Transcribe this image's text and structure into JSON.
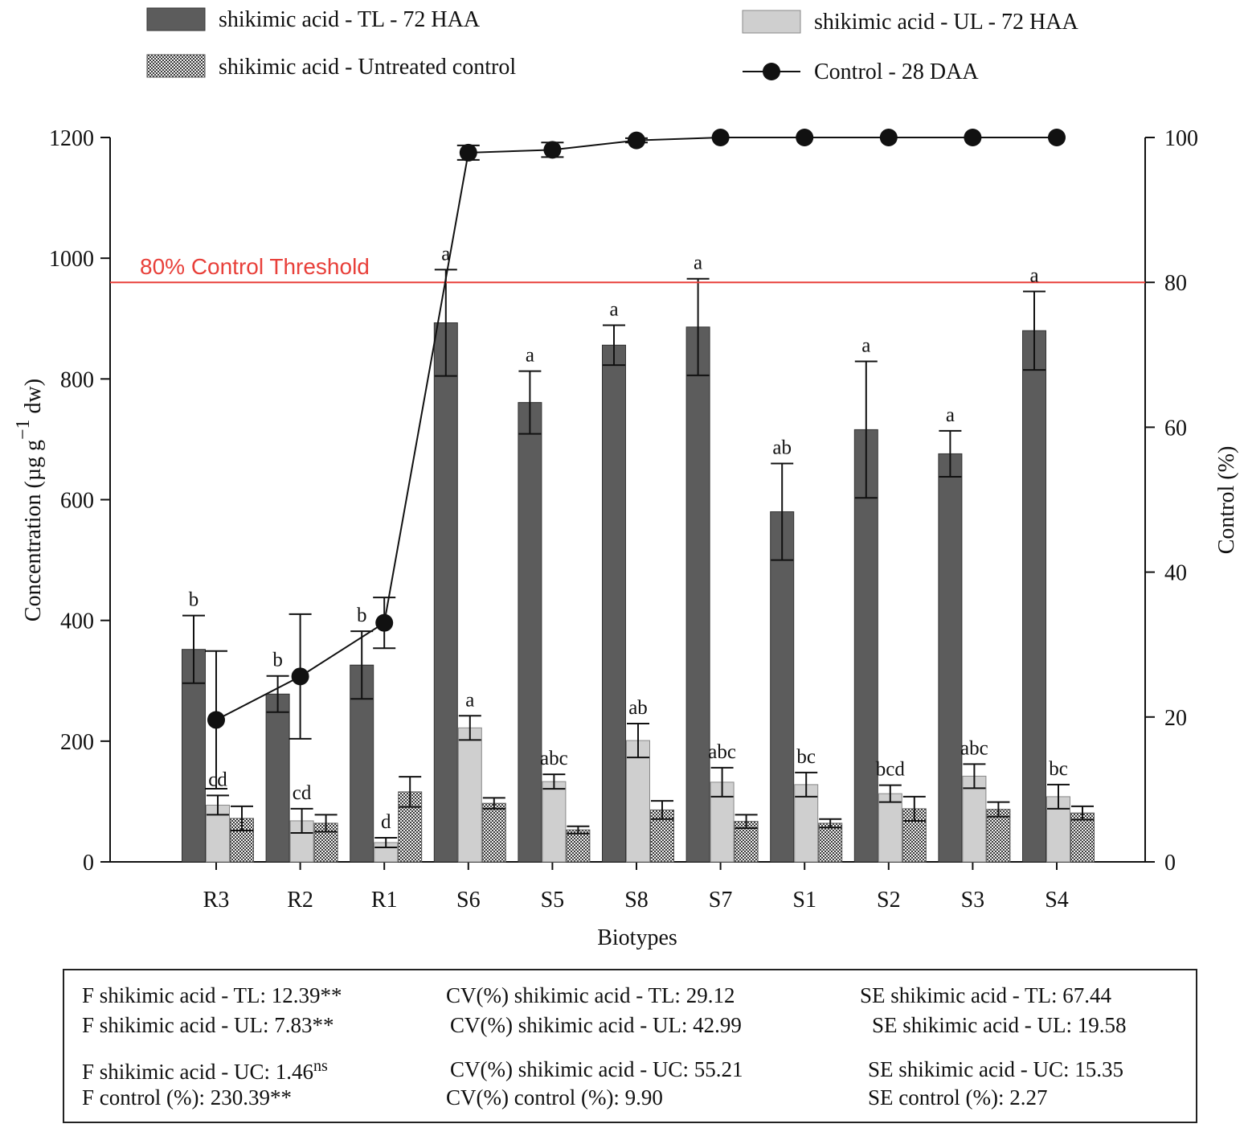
{
  "chart_data": {
    "type": "bar",
    "categories": [
      "R3",
      "R2",
      "R1",
      "S6",
      "S5",
      "S8",
      "S7",
      "S1",
      "S2",
      "S3",
      "S4"
    ],
    "xlabel": "Biotypes",
    "ylabel_left": "Concentration (µg g",
    "ylabel_left_sup": "−1",
    "ylabel_left_tail": " dw)",
    "ylabel_right": "Control (%)",
    "ylim_left": [
      0,
      1200
    ],
    "ylim_right": [
      0,
      100
    ],
    "left_ticks": [
      "0",
      "200",
      "400",
      "600",
      "800",
      "1000",
      "1200"
    ],
    "right_ticks": [
      "0",
      "20",
      "40",
      "60",
      "80",
      "100"
    ],
    "threshold": {
      "label": "80% Control Threshold",
      "value": 80,
      "axis": "right",
      "color": "#e8403a"
    },
    "legend": [
      {
        "label": "shikimic acid - TL - 72 HAA",
        "style": "dark-bar",
        "color": "#5c5c5c"
      },
      {
        "label": "shikimic acid - UL - 72 HAA",
        "style": "light-bar",
        "color": "#cfcfcf"
      },
      {
        "label": "shikimic acid - Untreated control",
        "style": "hatched-bar",
        "color": "#555555"
      },
      {
        "label": "Control - 28 DAA",
        "style": "line-marker",
        "color": "#111111"
      }
    ],
    "series": [
      {
        "name": "shikimic acid - TL - 72 HAA",
        "axis": "left",
        "values": [
          352,
          278,
          326,
          893,
          761,
          856,
          886,
          580,
          716,
          676,
          880
        ],
        "errors": [
          56,
          30,
          56,
          88,
          52,
          33,
          80,
          80,
          113,
          38,
          65
        ],
        "letters": [
          "b",
          "b",
          "b",
          "a",
          "a",
          "a",
          "a",
          "ab",
          "a",
          "a",
          "a"
        ]
      },
      {
        "name": "shikimic acid - UL - 72 HAA",
        "axis": "left",
        "values": [
          94,
          68,
          32,
          222,
          133,
          201,
          132,
          128,
          113,
          142,
          108
        ],
        "errors": [
          16,
          20,
          8,
          20,
          12,
          28,
          24,
          20,
          14,
          20,
          20
        ],
        "letters": [
          "cd",
          "cd",
          "d",
          "a",
          "abc",
          "ab",
          "abc",
          "bc",
          "bcd",
          "abc",
          "bc"
        ]
      },
      {
        "name": "shikimic acid - Untreated control",
        "axis": "left",
        "values": [
          72,
          64,
          116,
          97,
          53,
          86,
          67,
          64,
          88,
          87,
          81
        ],
        "errors": [
          20,
          14,
          25,
          9,
          6,
          15,
          11,
          7,
          20,
          12,
          11
        ]
      },
      {
        "name": "Control - 28 DAA",
        "axis": "right",
        "type": "line",
        "values": [
          19.6,
          25.6,
          33,
          97.9,
          98.3,
          99.6,
          100,
          100,
          100,
          100,
          100
        ],
        "errors": [
          9.5,
          8.6,
          3.5,
          1.0,
          1.0,
          0.3,
          0,
          0,
          0,
          0,
          0
        ]
      }
    ],
    "grid": false
  },
  "stats": {
    "f_tl": "F shikimic acid - TL: 12.39**",
    "f_ul": "F shikimic acid - UL: 7.83**",
    "f_uc": "F shikimic acid - UC: 1.46",
    "f_uc_sup": "ns",
    "f_control": "F control (%): 230.39**",
    "cv_tl": "CV(%) shikimic acid - TL: 29.12",
    "cv_ul": "CV(%) shikimic acid - UL: 42.99",
    "cv_uc": "CV(%) shikimic acid - UC: 55.21",
    "cv_control": "CV(%) control (%): 9.90",
    "se_tl": "SE shikimic acid - TL: 67.44",
    "se_ul": "SE shikimic acid - UL: 19.58",
    "se_uc": "SE shikimic acid - UC: 15.35",
    "se_control": "SE control (%): 2.27"
  }
}
